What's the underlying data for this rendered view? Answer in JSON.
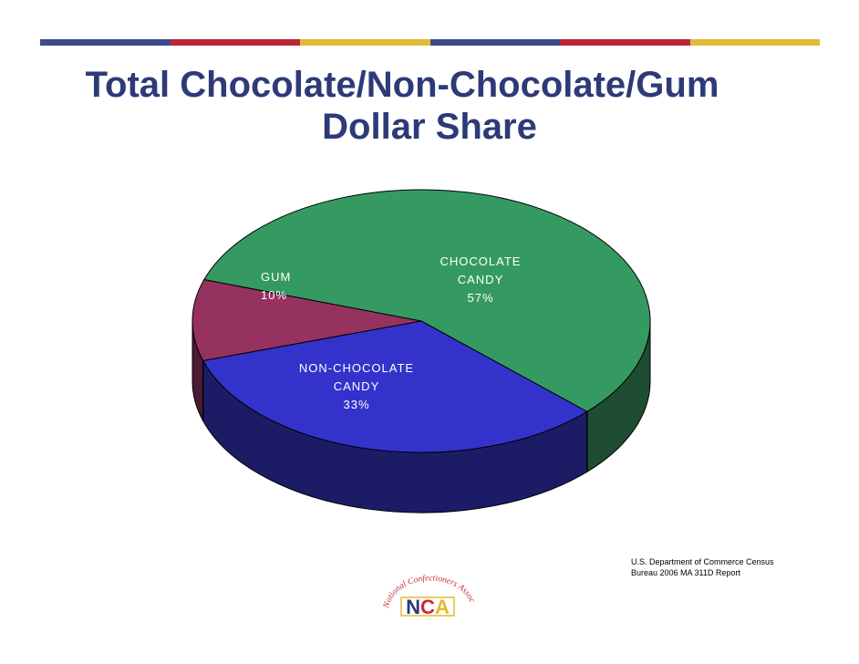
{
  "slide": {
    "title_line_1": "Total Chocolate/Non-Chocolate/Gum",
    "title_line_2": "Dollar Share",
    "source_line_1": "U.S. Department of Commerce Census",
    "source_line_2": " Bureau 2006 MA 311D Report",
    "logo_arc_text": "National Confectioners Association",
    "logo_text": "NCA"
  },
  "colors": {
    "title": "#2e3a78",
    "band": [
      "#3a4a8a",
      "#b8283a",
      "#e3b93a",
      "#3a4a8a",
      "#b8283a",
      "#e3b93a"
    ],
    "logo_red": "#cc2936",
    "logo_blue": "#2e3a78",
    "logo_yellow": "#e8b830"
  },
  "chart_data": {
    "type": "pie",
    "title": "Total Chocolate/Non-Chocolate/Gum Dollar Share",
    "style": "3d",
    "slices": [
      {
        "label": "CHOCOLATE CANDY",
        "label_lines": [
          "CHOCOLATE",
          "CANDY"
        ],
        "value": 57,
        "display": "57%",
        "color": "#359a62",
        "side_color": "#1e4d34"
      },
      {
        "label": "NON-CHOCOLATE CANDY",
        "label_lines": [
          "NON-CHOCOLATE",
          "CANDY"
        ],
        "value": 33,
        "display": "33%",
        "color": "#3333cc",
        "side_color": "#1c1c66"
      },
      {
        "label": "GUM",
        "label_lines": [
          "GUM"
        ],
        "value": 10,
        "display": "10%",
        "color": "#963260",
        "side_color": "#4d1a33"
      }
    ]
  }
}
